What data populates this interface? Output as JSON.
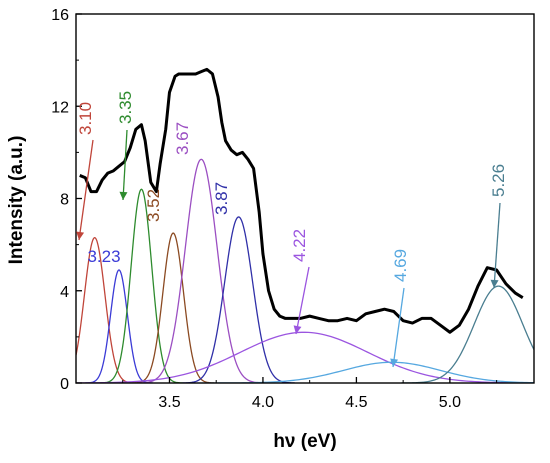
{
  "chart_data": {
    "type": "line",
    "xlabel": "hν (eV)",
    "ylabel": "Intensity (a.u.)",
    "xlim": [
      3.0,
      5.45
    ],
    "ylim": [
      0,
      16
    ],
    "x_ticks": [
      "3.5",
      "4.0",
      "4.5",
      "5.0"
    ],
    "x_tick_values": [
      3.5,
      4.0,
      4.5,
      5.0
    ],
    "y_ticks": [
      "0",
      "4",
      "8",
      "12",
      "16"
    ],
    "y_tick_values": [
      0,
      4,
      8,
      12,
      16
    ],
    "grid": false,
    "legend": "none",
    "measured": {
      "color": "#000000",
      "x": [
        3.02,
        3.05,
        3.08,
        3.11,
        3.14,
        3.17,
        3.2,
        3.23,
        3.26,
        3.29,
        3.32,
        3.35,
        3.37,
        3.4,
        3.43,
        3.45,
        3.48,
        3.5,
        3.53,
        3.55,
        3.58,
        3.61,
        3.64,
        3.67,
        3.7,
        3.73,
        3.76,
        3.78,
        3.8,
        3.83,
        3.86,
        3.89,
        3.92,
        3.95,
        3.98,
        4.0,
        4.03,
        4.06,
        4.09,
        4.12,
        4.16,
        4.2,
        4.25,
        4.3,
        4.35,
        4.4,
        4.45,
        4.5,
        4.55,
        4.6,
        4.65,
        4.7,
        4.75,
        4.8,
        4.85,
        4.9,
        4.95,
        5.0,
        5.05,
        5.1,
        5.15,
        5.2,
        5.25,
        5.3,
        5.35,
        5.39
      ],
      "y": [
        9.0,
        8.9,
        8.3,
        8.3,
        8.8,
        9.1,
        9.2,
        9.4,
        9.6,
        10.2,
        11.0,
        11.2,
        10.5,
        8.7,
        8.3,
        9.5,
        11.0,
        12.6,
        13.3,
        13.4,
        13.4,
        13.4,
        13.4,
        13.5,
        13.6,
        13.4,
        12.4,
        11.3,
        10.5,
        10.1,
        9.9,
        10.0,
        9.7,
        9.3,
        7.4,
        5.6,
        4.0,
        3.2,
        2.9,
        2.8,
        2.8,
        2.8,
        2.9,
        2.8,
        2.7,
        2.7,
        2.8,
        2.7,
        3.0,
        3.1,
        3.2,
        3.1,
        2.7,
        2.6,
        2.8,
        2.8,
        2.5,
        2.2,
        2.5,
        3.2,
        4.2,
        5.0,
        4.9,
        4.3,
        3.9,
        3.7
      ]
    },
    "series": [
      {
        "center": 3.1,
        "amplitude": 6.3,
        "sigma": 0.055,
        "color": "#c0453a",
        "label": "3.10"
      },
      {
        "center": 3.23,
        "amplitude": 4.9,
        "sigma": 0.045,
        "color": "#3b3bd6",
        "label": "3.23"
      },
      {
        "center": 3.35,
        "amplitude": 8.4,
        "sigma": 0.055,
        "color": "#2e8b2e",
        "label": "3.35"
      },
      {
        "center": 3.52,
        "amplitude": 6.5,
        "sigma": 0.055,
        "color": "#8b4a22",
        "label": "3.52"
      },
      {
        "center": 3.67,
        "amplitude": 9.7,
        "sigma": 0.085,
        "color": "#9b4fc2",
        "label": "3.67"
      },
      {
        "center": 3.87,
        "amplitude": 7.2,
        "sigma": 0.075,
        "color": "#3030a8",
        "label": "3.87"
      },
      {
        "center": 4.22,
        "amplitude": 2.2,
        "sigma": 0.34,
        "color": "#9b55e0",
        "label": "4.22"
      },
      {
        "center": 4.69,
        "amplitude": 0.9,
        "sigma": 0.26,
        "color": "#56a8e0",
        "label": "4.69"
      },
      {
        "center": 5.26,
        "amplitude": 4.2,
        "sigma": 0.13,
        "color": "#4a7e90",
        "label": "5.26"
      }
    ],
    "annotations": [
      {
        "text": "3.10",
        "target_x": 3.1,
        "target_y": 6.3,
        "color": "#c0453a"
      },
      {
        "text": "3.35",
        "target_x": 3.35,
        "target_y": 8.4,
        "color": "#2e8b2e"
      },
      {
        "text": "4.22",
        "target_x": 4.22,
        "target_y": 2.2,
        "color": "#9b55e0"
      },
      {
        "text": "4.69",
        "target_x": 4.69,
        "target_y": 0.95,
        "color": "#56a8e0"
      },
      {
        "text": "5.26",
        "target_x": 5.26,
        "target_y": 4.1,
        "color": "#4a7e90"
      }
    ]
  }
}
